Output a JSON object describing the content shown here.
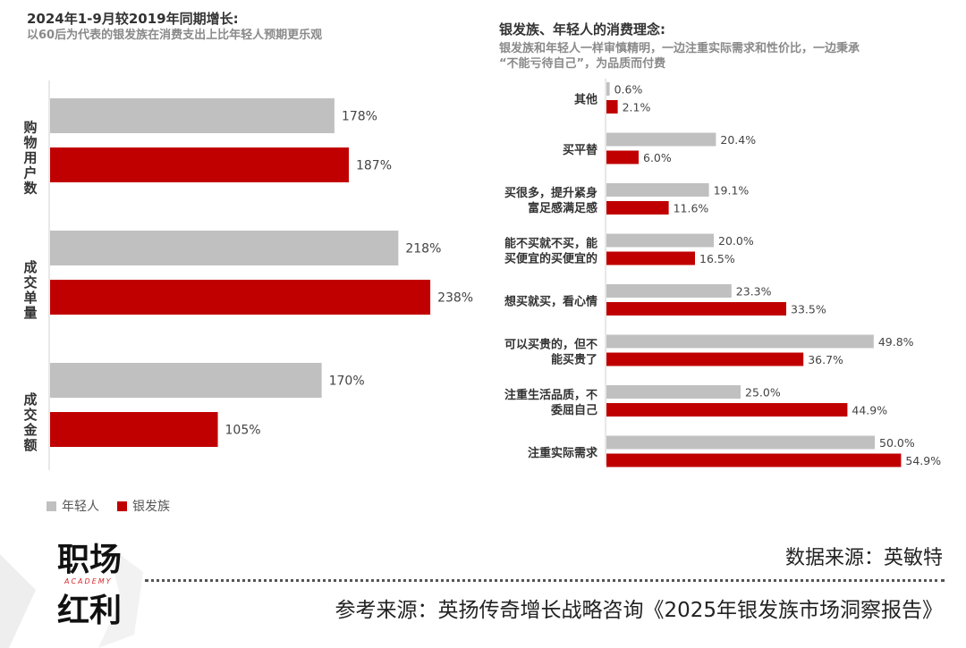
{
  "colors": {
    "young": "#c0c0c0",
    "silver": "#c00000",
    "brand_red": "#d9262b"
  },
  "left": {
    "title": "2024年1-9月较2019年同期增长:",
    "subtitle": "以60后为代表的银发族在消费支出上比年轻人预期更乐观"
  },
  "right": {
    "title": "银发族、年轻人的消费理念:",
    "subtitle_line1": "银发族和年轻人一样审慎精明，一边注重实际需求和性价比，一边秉承",
    "subtitle_line2": "“不能亏待自己”，为品质而付费"
  },
  "legend": {
    "young": "年轻人",
    "silver": "银发族"
  },
  "brand": {
    "line1": "职场",
    "academy": "ACADEMY",
    "line2": "红利"
  },
  "footer": {
    "data_source": "数据来源：英敏特",
    "ref_source": "参考来源：英扬传奇增长战略咨询《2025年银发族市场洞察报告》"
  },
  "chart_data": [
    {
      "type": "bar",
      "orientation": "horizontal",
      "title": "2024年1-9月较2019年同期增长:",
      "categories": [
        "购物用户数",
        "成交单量",
        "成交金额"
      ],
      "series": [
        {
          "name": "年轻人",
          "values": [
            178,
            218,
            170
          ],
          "labels": [
            "178%",
            "218%",
            "170%"
          ]
        },
        {
          "name": "银发族",
          "values": [
            187,
            238,
            105
          ],
          "labels": [
            "187%",
            "238%",
            "105%"
          ]
        }
      ],
      "unit": "%",
      "xlim": [
        0,
        250
      ],
      "grid": false,
      "legend": "bottom-left"
    },
    {
      "type": "bar",
      "orientation": "horizontal",
      "title": "银发族、年轻人的消费理念:",
      "categories": [
        [
          "其他"
        ],
        [
          "买平替"
        ],
        [
          "买很多，提升紧身",
          "富足感满足感"
        ],
        [
          "能不买就不买，能",
          "买便宜的买便宜的"
        ],
        [
          "想买就买，看心情"
        ],
        [
          "可以买贵的，但不",
          "能买贵了"
        ],
        [
          "注重生活品质，不",
          "委屈自己"
        ],
        [
          "注重实际需求"
        ]
      ],
      "series": [
        {
          "name": "年轻人",
          "values": [
            0.6,
            20.4,
            19.1,
            20.0,
            23.3,
            49.8,
            25.0,
            50.0
          ],
          "labels": [
            "0.6%",
            "20.4%",
            "19.1%",
            "20.0%",
            "23.3%",
            "49.8%",
            "25.0%",
            "50.0%"
          ]
        },
        {
          "name": "银发族",
          "values": [
            2.1,
            6.0,
            11.6,
            16.5,
            33.5,
            36.7,
            44.9,
            54.9
          ],
          "labels": [
            "2.1%",
            "6.0%",
            "11.6%",
            "16.5%",
            "33.5%",
            "36.7%",
            "44.9%",
            "54.9%"
          ]
        }
      ],
      "unit": "%",
      "xlim": [
        0,
        60
      ],
      "grid": false
    }
  ]
}
